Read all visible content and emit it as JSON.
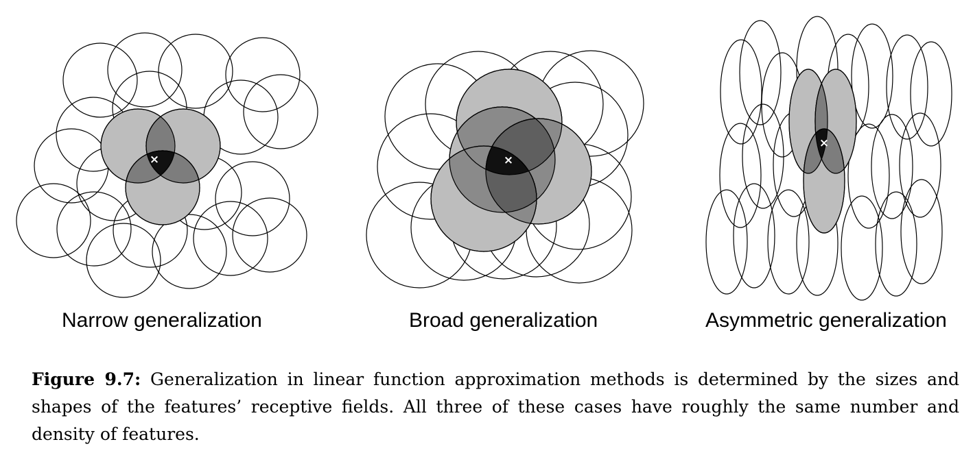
{
  "panels": [
    {
      "id": "narrow",
      "label": "Narrow generalization"
    },
    {
      "id": "broad",
      "label": "Broad generalization"
    },
    {
      "id": "asymmetric",
      "label": "Asymmetric generalization"
    }
  ],
  "caption": {
    "label": "Figure 9.7:",
    "text": "Generalization in linear function approximation methods is determined by the sizes and shapes of the features’ receptive fields. All three of these cases have roughly the same number and density of features."
  },
  "marker_symbol": "×",
  "colors": {
    "outline": "#000000",
    "active_fill": "#8a8a8a",
    "intersection_fill": "#111111",
    "marker": "#ffffff"
  }
}
